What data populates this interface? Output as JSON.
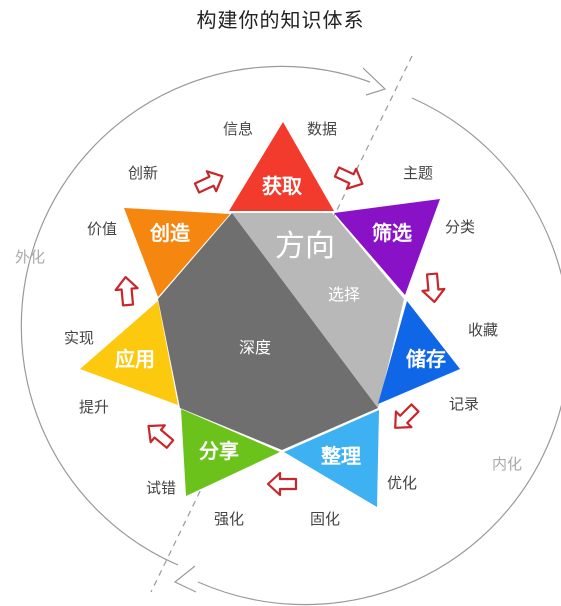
{
  "title": "构建你的知识体系",
  "center": {
    "top_label": "方向",
    "right_label": "选择",
    "left_label": "深度"
  },
  "cycle_labels": {
    "outer_left": "外化",
    "inner_right": "内化"
  },
  "stages": [
    {
      "label": "获取",
      "color": "#F23B2C",
      "side_terms": [
        "信息",
        "数据"
      ]
    },
    {
      "label": "筛选",
      "color": "#8A12C6",
      "side_terms": [
        "主题",
        "分类"
      ]
    },
    {
      "label": "储存",
      "color": "#0F67E8",
      "side_terms": [
        "收藏",
        "记录"
      ]
    },
    {
      "label": "整理",
      "color": "#3DB1F2",
      "side_terms": [
        "优化",
        "固化"
      ]
    },
    {
      "label": "分享",
      "color": "#6BC21A",
      "side_terms": [
        "强化",
        "试错"
      ]
    },
    {
      "label": "应用",
      "color": "#FCC90E",
      "side_terms": [
        "提升",
        "实现"
      ]
    },
    {
      "label": "创造",
      "color": "#F5860F",
      "side_terms": [
        "价值",
        "创新"
      ]
    }
  ]
}
